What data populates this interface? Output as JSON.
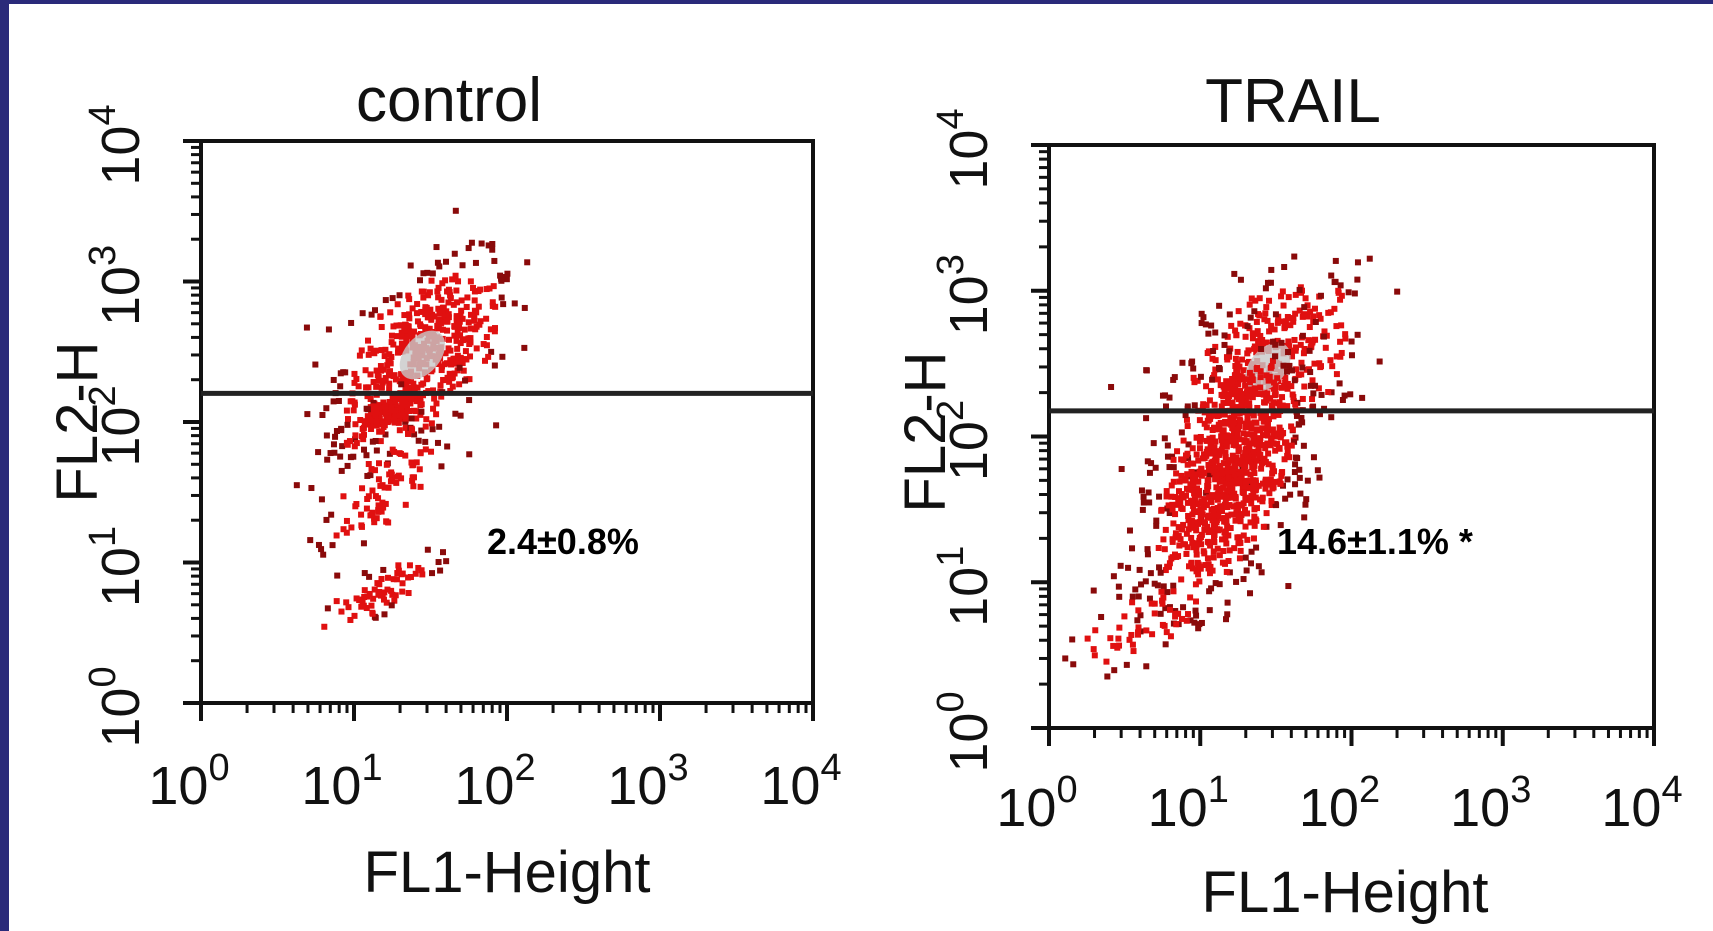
{
  "colors": {
    "frame": "#2a2a7a",
    "dots": "#e01010",
    "dots_dark": "#8a0a0a",
    "core": "#c8c8c8",
    "axis": "#111111"
  },
  "chart_data": [
    {
      "type": "scatter",
      "title": "control",
      "xlabel": "FL1-Height",
      "ylabel": "FL2-H",
      "x_scale": "log",
      "y_scale": "log",
      "xlim": [
        1,
        10000
      ],
      "ylim": [
        1,
        10000
      ],
      "x_ticks": [
        {
          "base": "10",
          "exp": "0"
        },
        {
          "base": "10",
          "exp": "1"
        },
        {
          "base": "10",
          "exp": "2"
        },
        {
          "base": "10",
          "exp": "3"
        },
        {
          "base": "10",
          "exp": "4"
        }
      ],
      "y_ticks": [
        {
          "base": "10",
          "exp": "0"
        },
        {
          "base": "10",
          "exp": "1"
        },
        {
          "base": "10",
          "exp": "2"
        },
        {
          "base": "10",
          "exp": "3"
        },
        {
          "base": "10",
          "exp": "4"
        }
      ],
      "gate_y": 160,
      "annotation": "2.4±0.8%",
      "clusters": [
        {
          "cx": 28,
          "cy": 300,
          "sx": 0.25,
          "sy": 0.32,
          "n": 520,
          "core": true
        },
        {
          "cx": 16,
          "cy": 110,
          "sx": 0.14,
          "sy": 0.12,
          "n": 130
        },
        {
          "cx": 16,
          "cy": 35,
          "sx": 0.15,
          "sy": 0.22,
          "n": 90
        },
        {
          "cx": 14,
          "cy": 6,
          "sx": 0.16,
          "sy": 0.12,
          "n": 70
        }
      ]
    },
    {
      "type": "scatter",
      "title": "TRAIL",
      "xlabel": "FL1-Height",
      "ylabel": "FL2-H",
      "x_scale": "log",
      "y_scale": "log",
      "xlim": [
        1,
        10000
      ],
      "ylim": [
        1,
        10000
      ],
      "x_ticks": [
        {
          "base": "10",
          "exp": "0"
        },
        {
          "base": "10",
          "exp": "1"
        },
        {
          "base": "10",
          "exp": "2"
        },
        {
          "base": "10",
          "exp": "3"
        },
        {
          "base": "10",
          "exp": "4"
        }
      ],
      "y_ticks": [
        {
          "base": "10",
          "exp": "0"
        },
        {
          "base": "10",
          "exp": "1"
        },
        {
          "base": "10",
          "exp": "2"
        },
        {
          "base": "10",
          "exp": "3"
        },
        {
          "base": "10",
          "exp": "4"
        }
      ],
      "gate_y": 150,
      "annotation": "14.6±1.1% *",
      "clusters": [
        {
          "cx": 28,
          "cy": 300,
          "sx": 0.28,
          "sy": 0.32,
          "n": 380,
          "core": true
        },
        {
          "cx": 15,
          "cy": 55,
          "sx": 0.22,
          "sy": 0.42,
          "n": 900
        },
        {
          "cx": 4,
          "cy": 5,
          "sx": 0.22,
          "sy": 0.14,
          "n": 60
        }
      ]
    }
  ]
}
